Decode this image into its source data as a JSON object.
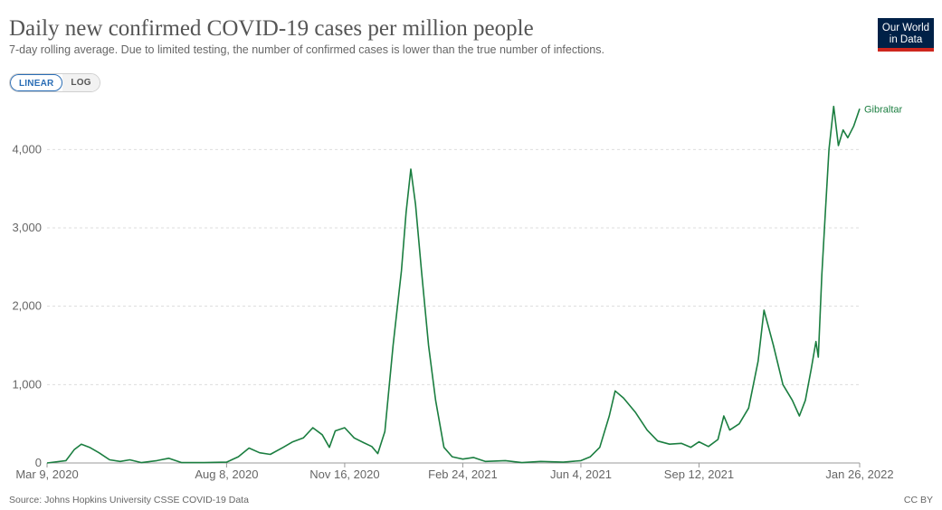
{
  "header": {
    "title": "Daily new confirmed COVID-19 cases per million people",
    "subtitle": "7-day rolling average. Due to limited testing, the number of confirmed cases is lower than the true number of infections."
  },
  "logo": {
    "line1": "Our World",
    "line2": "in Data",
    "bg_color": "#002147",
    "accent_color": "#ce261e"
  },
  "scale_toggle": {
    "linear_label": "LINEAR",
    "log_label": "LOG",
    "selected": "LINEAR"
  },
  "footer": {
    "source": "Source: Johns Hopkins University CSSE COVID-19 Data",
    "license": "CC BY"
  },
  "chart_data": {
    "type": "line",
    "title": "Daily new confirmed COVID-19 cases per million people",
    "xlabel": "",
    "ylabel": "",
    "ylim": [
      0,
      4500
    ],
    "y_ticks": [
      0,
      1000,
      2000,
      3000,
      4000
    ],
    "y_tick_labels": [
      "0",
      "1,000",
      "2,000",
      "3,000",
      "4,000"
    ],
    "x_tick_labels": [
      "Mar 9, 2020",
      "Aug 8, 2020",
      "Nov 16, 2020",
      "Feb 24, 2021",
      "Jun 4, 2021",
      "Sep 12, 2021",
      "Jan 26, 2022"
    ],
    "x_tick_dates": [
      "2020-03-09",
      "2020-08-08",
      "2020-11-16",
      "2021-02-24",
      "2021-06-04",
      "2021-09-12",
      "2022-01-26"
    ],
    "xlim": [
      "2020-03-09",
      "2022-01-26"
    ],
    "grid": true,
    "line_color": "#1b7e40",
    "series": [
      {
        "name": "Gibraltar",
        "points": [
          [
            "2020-03-09",
            0
          ],
          [
            "2020-03-25",
            30
          ],
          [
            "2020-04-01",
            170
          ],
          [
            "2020-04-07",
            240
          ],
          [
            "2020-04-14",
            200
          ],
          [
            "2020-04-22",
            130
          ],
          [
            "2020-05-01",
            40
          ],
          [
            "2020-05-10",
            20
          ],
          [
            "2020-05-18",
            40
          ],
          [
            "2020-05-28",
            5
          ],
          [
            "2020-06-10",
            30
          ],
          [
            "2020-06-20",
            60
          ],
          [
            "2020-07-01",
            5
          ],
          [
            "2020-07-20",
            5
          ],
          [
            "2020-08-08",
            10
          ],
          [
            "2020-08-18",
            80
          ],
          [
            "2020-08-27",
            190
          ],
          [
            "2020-09-05",
            130
          ],
          [
            "2020-09-14",
            110
          ],
          [
            "2020-09-25",
            200
          ],
          [
            "2020-10-03",
            270
          ],
          [
            "2020-10-12",
            320
          ],
          [
            "2020-10-20",
            450
          ],
          [
            "2020-10-28",
            360
          ],
          [
            "2020-11-03",
            200
          ],
          [
            "2020-11-08",
            410
          ],
          [
            "2020-11-16",
            450
          ],
          [
            "2020-11-24",
            320
          ],
          [
            "2020-12-02",
            260
          ],
          [
            "2020-12-09",
            210
          ],
          [
            "2020-12-14",
            120
          ],
          [
            "2020-12-20",
            400
          ],
          [
            "2020-12-27",
            1500
          ],
          [
            "2021-01-03",
            2450
          ],
          [
            "2021-01-07",
            3200
          ],
          [
            "2021-01-11",
            3750
          ],
          [
            "2021-01-15",
            3300
          ],
          [
            "2021-01-20",
            2450
          ],
          [
            "2021-01-26",
            1500
          ],
          [
            "2021-02-01",
            800
          ],
          [
            "2021-02-08",
            200
          ],
          [
            "2021-02-15",
            80
          ],
          [
            "2021-02-24",
            50
          ],
          [
            "2021-03-05",
            70
          ],
          [
            "2021-03-15",
            20
          ],
          [
            "2021-04-01",
            30
          ],
          [
            "2021-04-15",
            5
          ],
          [
            "2021-05-01",
            20
          ],
          [
            "2021-05-20",
            10
          ],
          [
            "2021-06-04",
            30
          ],
          [
            "2021-06-12",
            80
          ],
          [
            "2021-06-20",
            200
          ],
          [
            "2021-06-28",
            600
          ],
          [
            "2021-07-03",
            920
          ],
          [
            "2021-07-10",
            830
          ],
          [
            "2021-07-20",
            650
          ],
          [
            "2021-07-30",
            420
          ],
          [
            "2021-08-08",
            280
          ],
          [
            "2021-08-18",
            240
          ],
          [
            "2021-08-28",
            250
          ],
          [
            "2021-09-05",
            200
          ],
          [
            "2021-09-12",
            270
          ],
          [
            "2021-09-20",
            210
          ],
          [
            "2021-09-28",
            300
          ],
          [
            "2021-10-03",
            600
          ],
          [
            "2021-10-08",
            420
          ],
          [
            "2021-10-16",
            500
          ],
          [
            "2021-10-24",
            700
          ],
          [
            "2021-11-01",
            1300
          ],
          [
            "2021-11-06",
            1950
          ],
          [
            "2021-11-14",
            1500
          ],
          [
            "2021-11-22",
            1000
          ],
          [
            "2021-11-30",
            800
          ],
          [
            "2021-12-06",
            600
          ],
          [
            "2021-12-11",
            800
          ],
          [
            "2021-12-16",
            1200
          ],
          [
            "2021-12-20",
            1550
          ],
          [
            "2021-12-22",
            1350
          ],
          [
            "2021-12-25",
            2400
          ],
          [
            "2021-12-28",
            3200
          ],
          [
            "2021-12-31",
            4000
          ],
          [
            "2022-01-04",
            4550
          ],
          [
            "2022-01-08",
            4050
          ],
          [
            "2022-01-12",
            4250
          ],
          [
            "2022-01-16",
            4150
          ],
          [
            "2022-01-21",
            4300
          ],
          [
            "2022-01-26",
            4520
          ]
        ]
      }
    ]
  }
}
